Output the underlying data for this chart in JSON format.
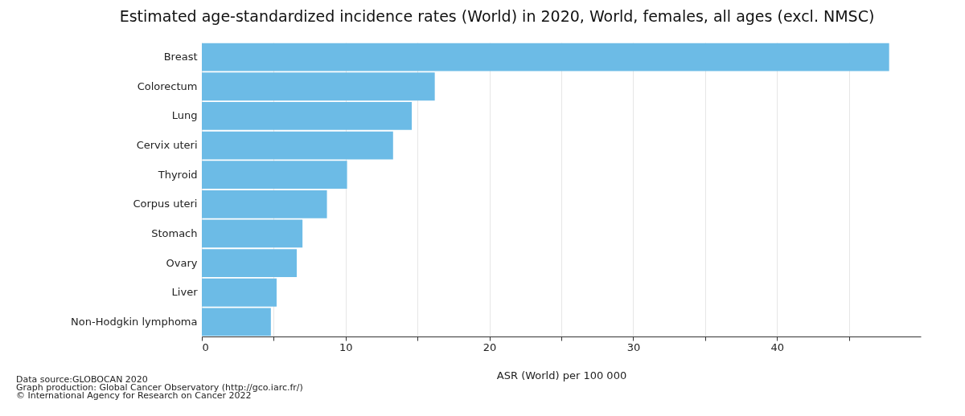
{
  "chart_data": {
    "type": "bar",
    "orientation": "horizontal",
    "title": "Estimated age-standardized incidence rates (World) in 2020, World, females, all ages (excl. NMSC)",
    "xlabel": "ASR (World) per 100 000",
    "categories": [
      "Breast",
      "Colorectum",
      "Lung",
      "Cervix uteri",
      "Thyroid",
      "Corpus uteri",
      "Stomach",
      "Ovary",
      "Liver",
      "Non-Hodgkin lymphoma"
    ],
    "values": [
      47.8,
      16.2,
      14.6,
      13.3,
      10.1,
      8.7,
      7.0,
      6.6,
      5.2,
      4.8
    ],
    "color": "#6cbbe6",
    "xlim": [
      0,
      50
    ],
    "xticks": [
      0,
      {
        "value": 5,
        "label": null
      },
      10,
      {
        "value": 15,
        "label": null
      },
      20,
      {
        "value": 25,
        "label": null
      },
      30,
      {
        "value": 35,
        "label": null
      },
      40,
      {
        "value": 45,
        "label": null
      }
    ],
    "grid": "x",
    "annotations": [
      "Data source:GLOBOCAN 2020",
      "Graph production: Global Cancer Observatory (http://gco.iarc.fr/)",
      "© International Agency for Research on Cancer 2022"
    ]
  }
}
